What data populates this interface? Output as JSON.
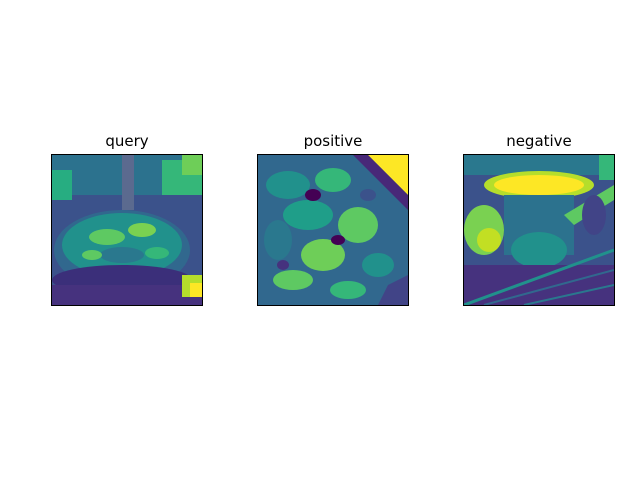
{
  "figure": {
    "panels": [
      {
        "title": "query",
        "colormap": "viridis",
        "content": "bowl-of-greens"
      },
      {
        "title": "positive",
        "colormap": "viridis",
        "content": "leafy-greens-closeup"
      },
      {
        "title": "negative",
        "colormap": "viridis",
        "content": "outdoor-scene"
      }
    ]
  },
  "colors": {
    "viridis_dark": "#440154",
    "viridis_mid_blue": "#3b528b",
    "viridis_teal": "#21918c",
    "viridis_green": "#5ec962",
    "viridis_yellow": "#fde725"
  }
}
